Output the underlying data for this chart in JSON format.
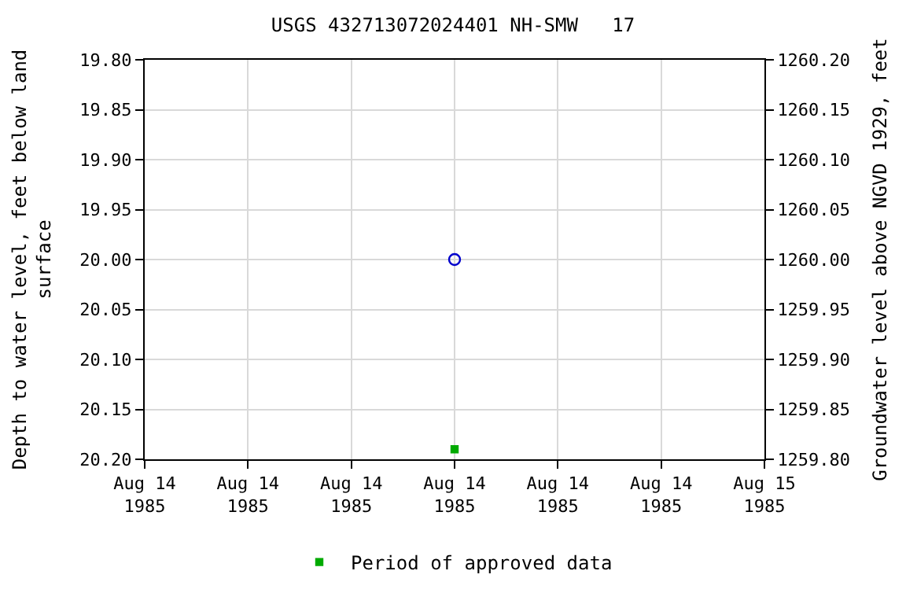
{
  "chart_data": {
    "type": "scatter",
    "title": "USGS 432713072024401 NH-SMW   17",
    "ylabel": "Depth to water level, feet below land\nsurface",
    "y2label": "Groundwater level above NGVD 1929, feet",
    "series": [
      {
        "color": "#0000cc",
        "marker": "circle-open",
        "x": [
          "1985-08-14T12:00"
        ],
        "values": [
          20.0
        ]
      },
      {
        "name": "Period of approved data",
        "color": "#00aa00",
        "marker": "square",
        "x": [
          "1985-08-14T12:00"
        ],
        "values": [
          20.19
        ]
      }
    ],
    "xlim": [
      "1985-08-14T00:00",
      "1985-08-15T00:00"
    ],
    "xticks": [
      {
        "value": "1985-08-14T00:00",
        "label": "Aug 14\n1985"
      },
      {
        "value": "1985-08-14T04:00",
        "label": "Aug 14\n1985"
      },
      {
        "value": "1985-08-14T08:00",
        "label": "Aug 14\n1985"
      },
      {
        "value": "1985-08-14T12:00",
        "label": "Aug 14\n1985"
      },
      {
        "value": "1985-08-14T16:00",
        "label": "Aug 14\n1985"
      },
      {
        "value": "1985-08-14T20:00",
        "label": "Aug 14\n1985"
      },
      {
        "value": "1985-08-15T00:00",
        "label": "Aug 15\n1985"
      }
    ],
    "ylim": [
      20.2,
      19.8
    ],
    "yticks": [
      {
        "value": 19.8,
        "label": "19.80"
      },
      {
        "value": 19.85,
        "label": "19.85"
      },
      {
        "value": 19.9,
        "label": "19.90"
      },
      {
        "value": 19.95,
        "label": "19.95"
      },
      {
        "value": 20.0,
        "label": "20.00"
      },
      {
        "value": 20.05,
        "label": "20.05"
      },
      {
        "value": 20.1,
        "label": "20.10"
      },
      {
        "value": 20.15,
        "label": "20.15"
      },
      {
        "value": 20.2,
        "label": "20.20"
      }
    ],
    "y2lim": [
      1259.8,
      1260.2
    ],
    "y2ticks": [
      {
        "value": 1259.8,
        "label": "1259.80"
      },
      {
        "value": 1259.85,
        "label": "1259.85"
      },
      {
        "value": 1259.9,
        "label": "1259.90"
      },
      {
        "value": 1259.95,
        "label": "1259.95"
      },
      {
        "value": 1260.0,
        "label": "1260.00"
      },
      {
        "value": 1260.05,
        "label": "1260.05"
      },
      {
        "value": 1260.1,
        "label": "1260.10"
      },
      {
        "value": 1260.15,
        "label": "1260.15"
      },
      {
        "value": 1260.2,
        "label": "1260.20"
      }
    ],
    "grid": true,
    "legend": "bottom"
  }
}
